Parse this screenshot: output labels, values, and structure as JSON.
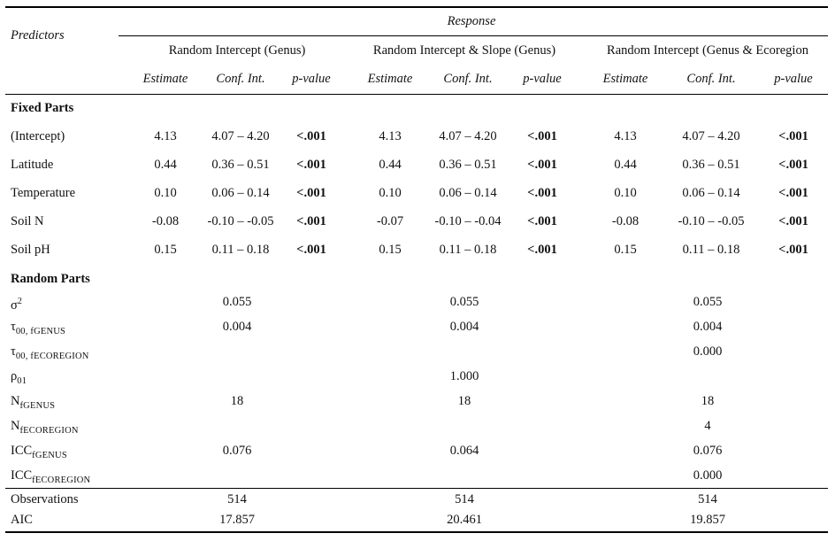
{
  "header": {
    "predictors": "Predictors",
    "response": "Response",
    "models": [
      "Random Intercept (Genus)",
      "Random Intercept & Slope (Genus)",
      "Random Intercept (Genus & Ecoregion"
    ],
    "subheaders": [
      "Estimate",
      "Conf. Int.",
      "p-value"
    ]
  },
  "fixed": {
    "title": "Fixed Parts",
    "rows": [
      {
        "label": "(Intercept)",
        "cells": [
          "4.13",
          "4.07 – 4.20",
          "<.001",
          "4.13",
          "4.07 – 4.20",
          "<.001",
          "4.13",
          "4.07 – 4.20",
          "<.001"
        ]
      },
      {
        "label": "Latitude",
        "cells": [
          "0.44",
          "0.36 – 0.51",
          "<.001",
          "0.44",
          "0.36 – 0.51",
          "<.001",
          "0.44",
          "0.36 – 0.51",
          "<.001"
        ]
      },
      {
        "label": "Temperature",
        "cells": [
          "0.10",
          "0.06 – 0.14",
          "<.001",
          "0.10",
          "0.06 – 0.14",
          "<.001",
          "0.10",
          "0.06 – 0.14",
          "<.001"
        ]
      },
      {
        "label": "Soil N",
        "cells": [
          "-0.08",
          "-0.10 – -0.05",
          "<.001",
          "-0.07",
          "-0.10 – -0.04",
          "<.001",
          "-0.08",
          "-0.10 – -0.05",
          "<.001"
        ]
      },
      {
        "label": "Soil pH",
        "cells": [
          "0.15",
          "0.11 – 0.18",
          "<.001",
          "0.15",
          "0.11 – 0.18",
          "<.001",
          "0.15",
          "0.11 – 0.18",
          "<.001"
        ]
      }
    ]
  },
  "random": {
    "title": "Random Parts",
    "rows": [
      {
        "base": "σ",
        "sup": "2",
        "sub": "",
        "values": [
          "0.055",
          "0.055",
          "0.055"
        ]
      },
      {
        "base": "τ",
        "sup": "",
        "sub": "00, fGENUS",
        "values": [
          "0.004",
          "0.004",
          "0.004"
        ]
      },
      {
        "base": "τ",
        "sup": "",
        "sub": "00, fECOREGION",
        "values": [
          "",
          "",
          "0.000"
        ]
      },
      {
        "base": "ρ",
        "sup": "",
        "sub": "01",
        "values": [
          "",
          "1.000",
          ""
        ]
      },
      {
        "base": "N",
        "sup": "",
        "sub": "fGENUS",
        "values": [
          "18",
          "18",
          "18"
        ]
      },
      {
        "base": "N",
        "sup": "",
        "sub": "fECOREGION",
        "values": [
          "",
          "",
          "4"
        ]
      },
      {
        "base": "ICC",
        "sup": "",
        "sub": "fGENUS",
        "values": [
          "0.076",
          "0.064",
          "0.076"
        ]
      },
      {
        "base": "ICC",
        "sup": "",
        "sub": "fECOREGION",
        "values": [
          "",
          "",
          "0.000"
        ]
      }
    ]
  },
  "summary": [
    {
      "label": "Observations",
      "values": [
        "514",
        "514",
        "514"
      ]
    },
    {
      "label": "AIC",
      "values": [
        "17.857",
        "20.461",
        "19.857"
      ]
    }
  ]
}
